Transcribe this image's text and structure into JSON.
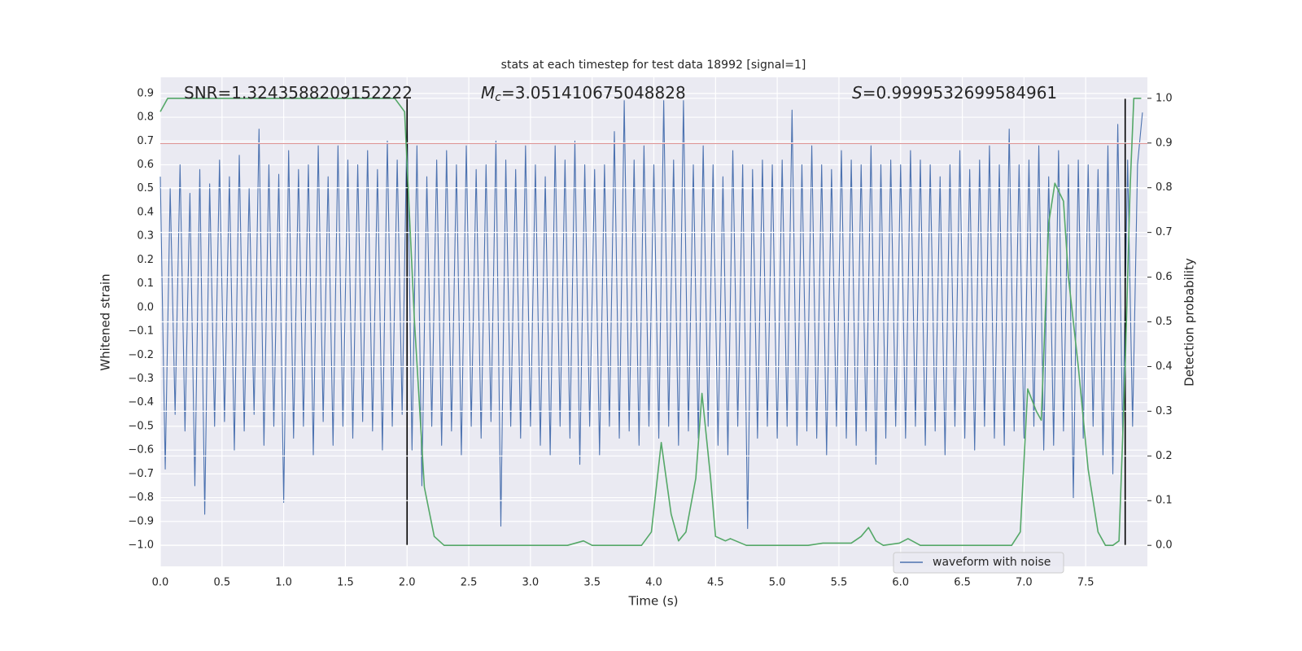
{
  "chart_data": {
    "type": "line",
    "title": "stats at each timestep for test data 18992 [signal=1]",
    "x_label": "Time (s)",
    "y_label": "Whitened strain",
    "y2_label": "Detection probability",
    "annotations": [
      {
        "text": "SNR=1.3243588209152222"
      },
      {
        "symbol": "M",
        "subscript": "c",
        "text": "=3.051410675048828"
      },
      {
        "symbol": "S",
        "text": "=0.9999532699584961"
      }
    ],
    "xlim": [
      0,
      8
    ],
    "ylim": [
      -1.089,
      0.968
    ],
    "y2lim": [
      -0.047,
      1.047
    ],
    "xticks": [
      {
        "value": 0,
        "label": "0.0"
      },
      {
        "value": 0.5,
        "label": "0.5"
      },
      {
        "value": 1,
        "label": "1.0"
      },
      {
        "value": 1.5,
        "label": "1.5"
      },
      {
        "value": 2,
        "label": "2.0"
      },
      {
        "value": 2.5,
        "label": "2.5"
      },
      {
        "value": 3,
        "label": "3.0"
      },
      {
        "value": 3.5,
        "label": "3.5"
      },
      {
        "value": 4,
        "label": "4.0"
      },
      {
        "value": 4.5,
        "label": "4.5"
      },
      {
        "value": 5,
        "label": "5.0"
      },
      {
        "value": 5.5,
        "label": "5.5"
      },
      {
        "value": 6,
        "label": "6.0"
      },
      {
        "value": 6.5,
        "label": "6.5"
      },
      {
        "value": 7,
        "label": "7.0"
      },
      {
        "value": 7.5,
        "label": "7.5"
      }
    ],
    "yticks": [
      {
        "value": -1,
        "label": "−1.0"
      },
      {
        "value": -0.9,
        "label": "−0.9"
      },
      {
        "value": -0.8,
        "label": "−0.8"
      },
      {
        "value": -0.7,
        "label": "−0.7"
      },
      {
        "value": -0.6,
        "label": "−0.6"
      },
      {
        "value": -0.5,
        "label": "−0.5"
      },
      {
        "value": -0.4,
        "label": "−0.4"
      },
      {
        "value": -0.3,
        "label": "−0.3"
      },
      {
        "value": -0.2,
        "label": "−0.2"
      },
      {
        "value": -0.1,
        "label": "−0.1"
      },
      {
        "value": 0,
        "label": "0.0"
      },
      {
        "value": 0.1,
        "label": "0.1"
      },
      {
        "value": 0.2,
        "label": "0.2"
      },
      {
        "value": 0.3,
        "label": "0.3"
      },
      {
        "value": 0.4,
        "label": "0.4"
      },
      {
        "value": 0.5,
        "label": "0.5"
      },
      {
        "value": 0.6,
        "label": "0.6"
      },
      {
        "value": 0.7,
        "label": "0.7"
      },
      {
        "value": 0.8,
        "label": "0.8"
      },
      {
        "value": 0.9,
        "label": "0.9"
      }
    ],
    "y2ticks": [
      {
        "value": 0,
        "label": "0.0"
      },
      {
        "value": 0.1,
        "label": "0.1"
      },
      {
        "value": 0.2,
        "label": "0.2"
      },
      {
        "value": 0.3,
        "label": "0.3"
      },
      {
        "value": 0.4,
        "label": "0.4"
      },
      {
        "value": 0.5,
        "label": "0.5"
      },
      {
        "value": 0.6,
        "label": "0.6"
      },
      {
        "value": 0.7,
        "label": "0.7"
      },
      {
        "value": 0.8,
        "label": "0.8"
      },
      {
        "value": 0.9,
        "label": "0.9"
      },
      {
        "value": 1,
        "label": "1.0"
      }
    ],
    "grid": true,
    "legend": "lower right",
    "series": [
      {
        "name": "waveform with noise",
        "color": "#4c72b0",
        "x": [
          0,
          0.04,
          0.08,
          0.12,
          0.16,
          0.2,
          0.24,
          0.28,
          0.32,
          0.36,
          0.4,
          0.44,
          0.48,
          0.52,
          0.56,
          0.6,
          0.64,
          0.68,
          0.72,
          0.76,
          0.8,
          0.84,
          0.88,
          0.92,
          0.96,
          1,
          1.04,
          1.08,
          1.12,
          1.16,
          1.2,
          1.24,
          1.28,
          1.32,
          1.36,
          1.4,
          1.44,
          1.48,
          1.52,
          1.56,
          1.6,
          1.64,
          1.68,
          1.72,
          1.76,
          1.8,
          1.84,
          1.88,
          1.92,
          1.96,
          2,
          2.04,
          2.08,
          2.12,
          2.16,
          2.2,
          2.24,
          2.28,
          2.32,
          2.36,
          2.4,
          2.44,
          2.48,
          2.52,
          2.56,
          2.6,
          2.64,
          2.68,
          2.72,
          2.76,
          2.8,
          2.84,
          2.88,
          2.92,
          2.96,
          3,
          3.04,
          3.08,
          3.12,
          3.16,
          3.2,
          3.24,
          3.28,
          3.32,
          3.36,
          3.4,
          3.44,
          3.48,
          3.52,
          3.56,
          3.6,
          3.64,
          3.68,
          3.72,
          3.76,
          3.8,
          3.84,
          3.88,
          3.92,
          3.96,
          4,
          4.04,
          4.08,
          4.12,
          4.16,
          4.2,
          4.24,
          4.28,
          4.32,
          4.36,
          4.4,
          4.44,
          4.48,
          4.52,
          4.56,
          4.6,
          4.64,
          4.68,
          4.72,
          4.76,
          4.8,
          4.84,
          4.88,
          4.92,
          4.96,
          5,
          5.04,
          5.08,
          5.12,
          5.16,
          5.2,
          5.24,
          5.28,
          5.32,
          5.36,
          5.4,
          5.44,
          5.48,
          5.52,
          5.56,
          5.6,
          5.64,
          5.68,
          5.72,
          5.76,
          5.8,
          5.84,
          5.88,
          5.92,
          5.96,
          6,
          6.04,
          6.08,
          6.12,
          6.16,
          6.2,
          6.24,
          6.28,
          6.32,
          6.36,
          6.4,
          6.44,
          6.48,
          6.52,
          6.56,
          6.6,
          6.64,
          6.68,
          6.72,
          6.76,
          6.8,
          6.84,
          6.88,
          6.92,
          6.96,
          7,
          7.04,
          7.08,
          7.12,
          7.16,
          7.2,
          7.24,
          7.28,
          7.32,
          7.36,
          7.4,
          7.44,
          7.48,
          7.52,
          7.56,
          7.6,
          7.64,
          7.68,
          7.72,
          7.76,
          7.8,
          7.84,
          7.88,
          7.92,
          7.96
        ],
        "values": [
          0.55,
          -0.68,
          0.5,
          -0.45,
          0.6,
          -0.52,
          0.48,
          -0.75,
          0.58,
          -0.87,
          0.52,
          -0.5,
          0.62,
          -0.48,
          0.55,
          -0.6,
          0.64,
          -0.52,
          0.5,
          -0.45,
          0.75,
          -0.58,
          0.6,
          -0.5,
          0.56,
          -0.82,
          0.66,
          -0.55,
          0.58,
          -0.5,
          0.6,
          -0.62,
          0.68,
          -0.48,
          0.55,
          -0.58,
          0.68,
          -0.5,
          0.62,
          -0.55,
          0.6,
          -0.48,
          0.66,
          -0.52,
          0.58,
          -0.6,
          0.7,
          -0.5,
          0.62,
          -0.45,
          0.8,
          -0.6,
          0.68,
          -0.75,
          0.55,
          -0.5,
          0.62,
          -0.58,
          0.66,
          -0.52,
          0.6,
          -0.62,
          0.68,
          -0.5,
          0.58,
          -0.55,
          0.6,
          -0.48,
          0.7,
          -0.92,
          0.62,
          -0.5,
          0.58,
          -0.55,
          0.68,
          -0.5,
          0.6,
          -0.58,
          0.55,
          -0.62,
          0.68,
          -0.5,
          0.62,
          -0.55,
          0.7,
          -0.66,
          0.6,
          -0.5,
          0.58,
          -0.62,
          0.6,
          -0.5,
          0.74,
          -0.55,
          0.87,
          -0.52,
          0.62,
          -0.58,
          0.68,
          -0.5,
          0.6,
          -0.55,
          0.87,
          -0.5,
          0.62,
          -0.58,
          0.87,
          -0.52,
          0.6,
          -0.55,
          0.68,
          -0.5,
          0.6,
          -0.58,
          0.55,
          -0.62,
          0.66,
          -0.5,
          0.6,
          -0.93,
          0.58,
          -0.55,
          0.62,
          -0.5,
          0.6,
          -0.55,
          0.62,
          -0.5,
          0.83,
          -0.58,
          0.6,
          -0.52,
          0.68,
          -0.55,
          0.6,
          -0.62,
          0.58,
          -0.5,
          0.66,
          -0.55,
          0.62,
          -0.58,
          0.6,
          -0.52,
          0.68,
          -0.66,
          0.6,
          -0.55,
          0.62,
          -0.5,
          0.6,
          -0.55,
          0.66,
          -0.5,
          0.62,
          -0.58,
          0.6,
          -0.52,
          0.55,
          -0.62,
          0.6,
          -0.5,
          0.66,
          -0.55,
          0.58,
          -0.6,
          0.62,
          -0.5,
          0.68,
          -0.55,
          0.6,
          -0.58,
          0.75,
          -0.52,
          0.6,
          -0.55,
          0.62,
          -0.5,
          0.68,
          -0.6,
          0.55,
          -0.58,
          0.66,
          -0.52,
          0.6,
          -0.8,
          0.62,
          -0.55,
          0.6,
          -0.5,
          0.58,
          -0.62,
          0.68,
          -0.7,
          0.77,
          -0.55,
          0.62,
          -0.5,
          0.6,
          0.82
        ]
      },
      {
        "color": "#c44e52",
        "x": [
          0,
          8
        ],
        "values": [
          0.69,
          0.69
        ]
      },
      {
        "color": "#000000",
        "x": [
          2,
          2
        ],
        "values": [
          -1,
          0.88
        ]
      },
      {
        "color": "#000000",
        "x": [
          7.82,
          7.82
        ],
        "values": [
          -1,
          0.88
        ]
      },
      {
        "color": "#55a868",
        "axis": "y2",
        "x": [
          0,
          0.06,
          1.9,
          1.98,
          2.06,
          2.14,
          2.22,
          2.3,
          3.3,
          3.43,
          3.5,
          3.9,
          3.98,
          4.06,
          4.14,
          4.2,
          4.26,
          4.34,
          4.39,
          4.46,
          4.5,
          4.58,
          4.62,
          4.75,
          5.25,
          5.37,
          5.6,
          5.68,
          5.74,
          5.8,
          5.86,
          5.99,
          6.06,
          6.16,
          6.9,
          6.97,
          7.03,
          7.1,
          7.14,
          7.2,
          7.25,
          7.32,
          7.36,
          7.44,
          7.52,
          7.6,
          7.66,
          7.72,
          7.77,
          7.82,
          7.86,
          7.89,
          7.95
        ],
        "values": [
          0.97,
          1,
          1,
          0.97,
          0.5,
          0.13,
          0.02,
          0,
          0,
          0.01,
          0,
          0,
          0.03,
          0.23,
          0.07,
          0.01,
          0.03,
          0.15,
          0.34,
          0.15,
          0.02,
          0.01,
          0.015,
          0,
          0,
          0.005,
          0.005,
          0.02,
          0.04,
          0.01,
          0,
          0.005,
          0.015,
          0,
          0,
          0.03,
          0.35,
          0.3,
          0.28,
          0.72,
          0.81,
          0.77,
          0.6,
          0.4,
          0.17,
          0.03,
          0,
          0,
          0.01,
          0.4,
          0.8,
          1,
          1
        ]
      }
    ]
  }
}
